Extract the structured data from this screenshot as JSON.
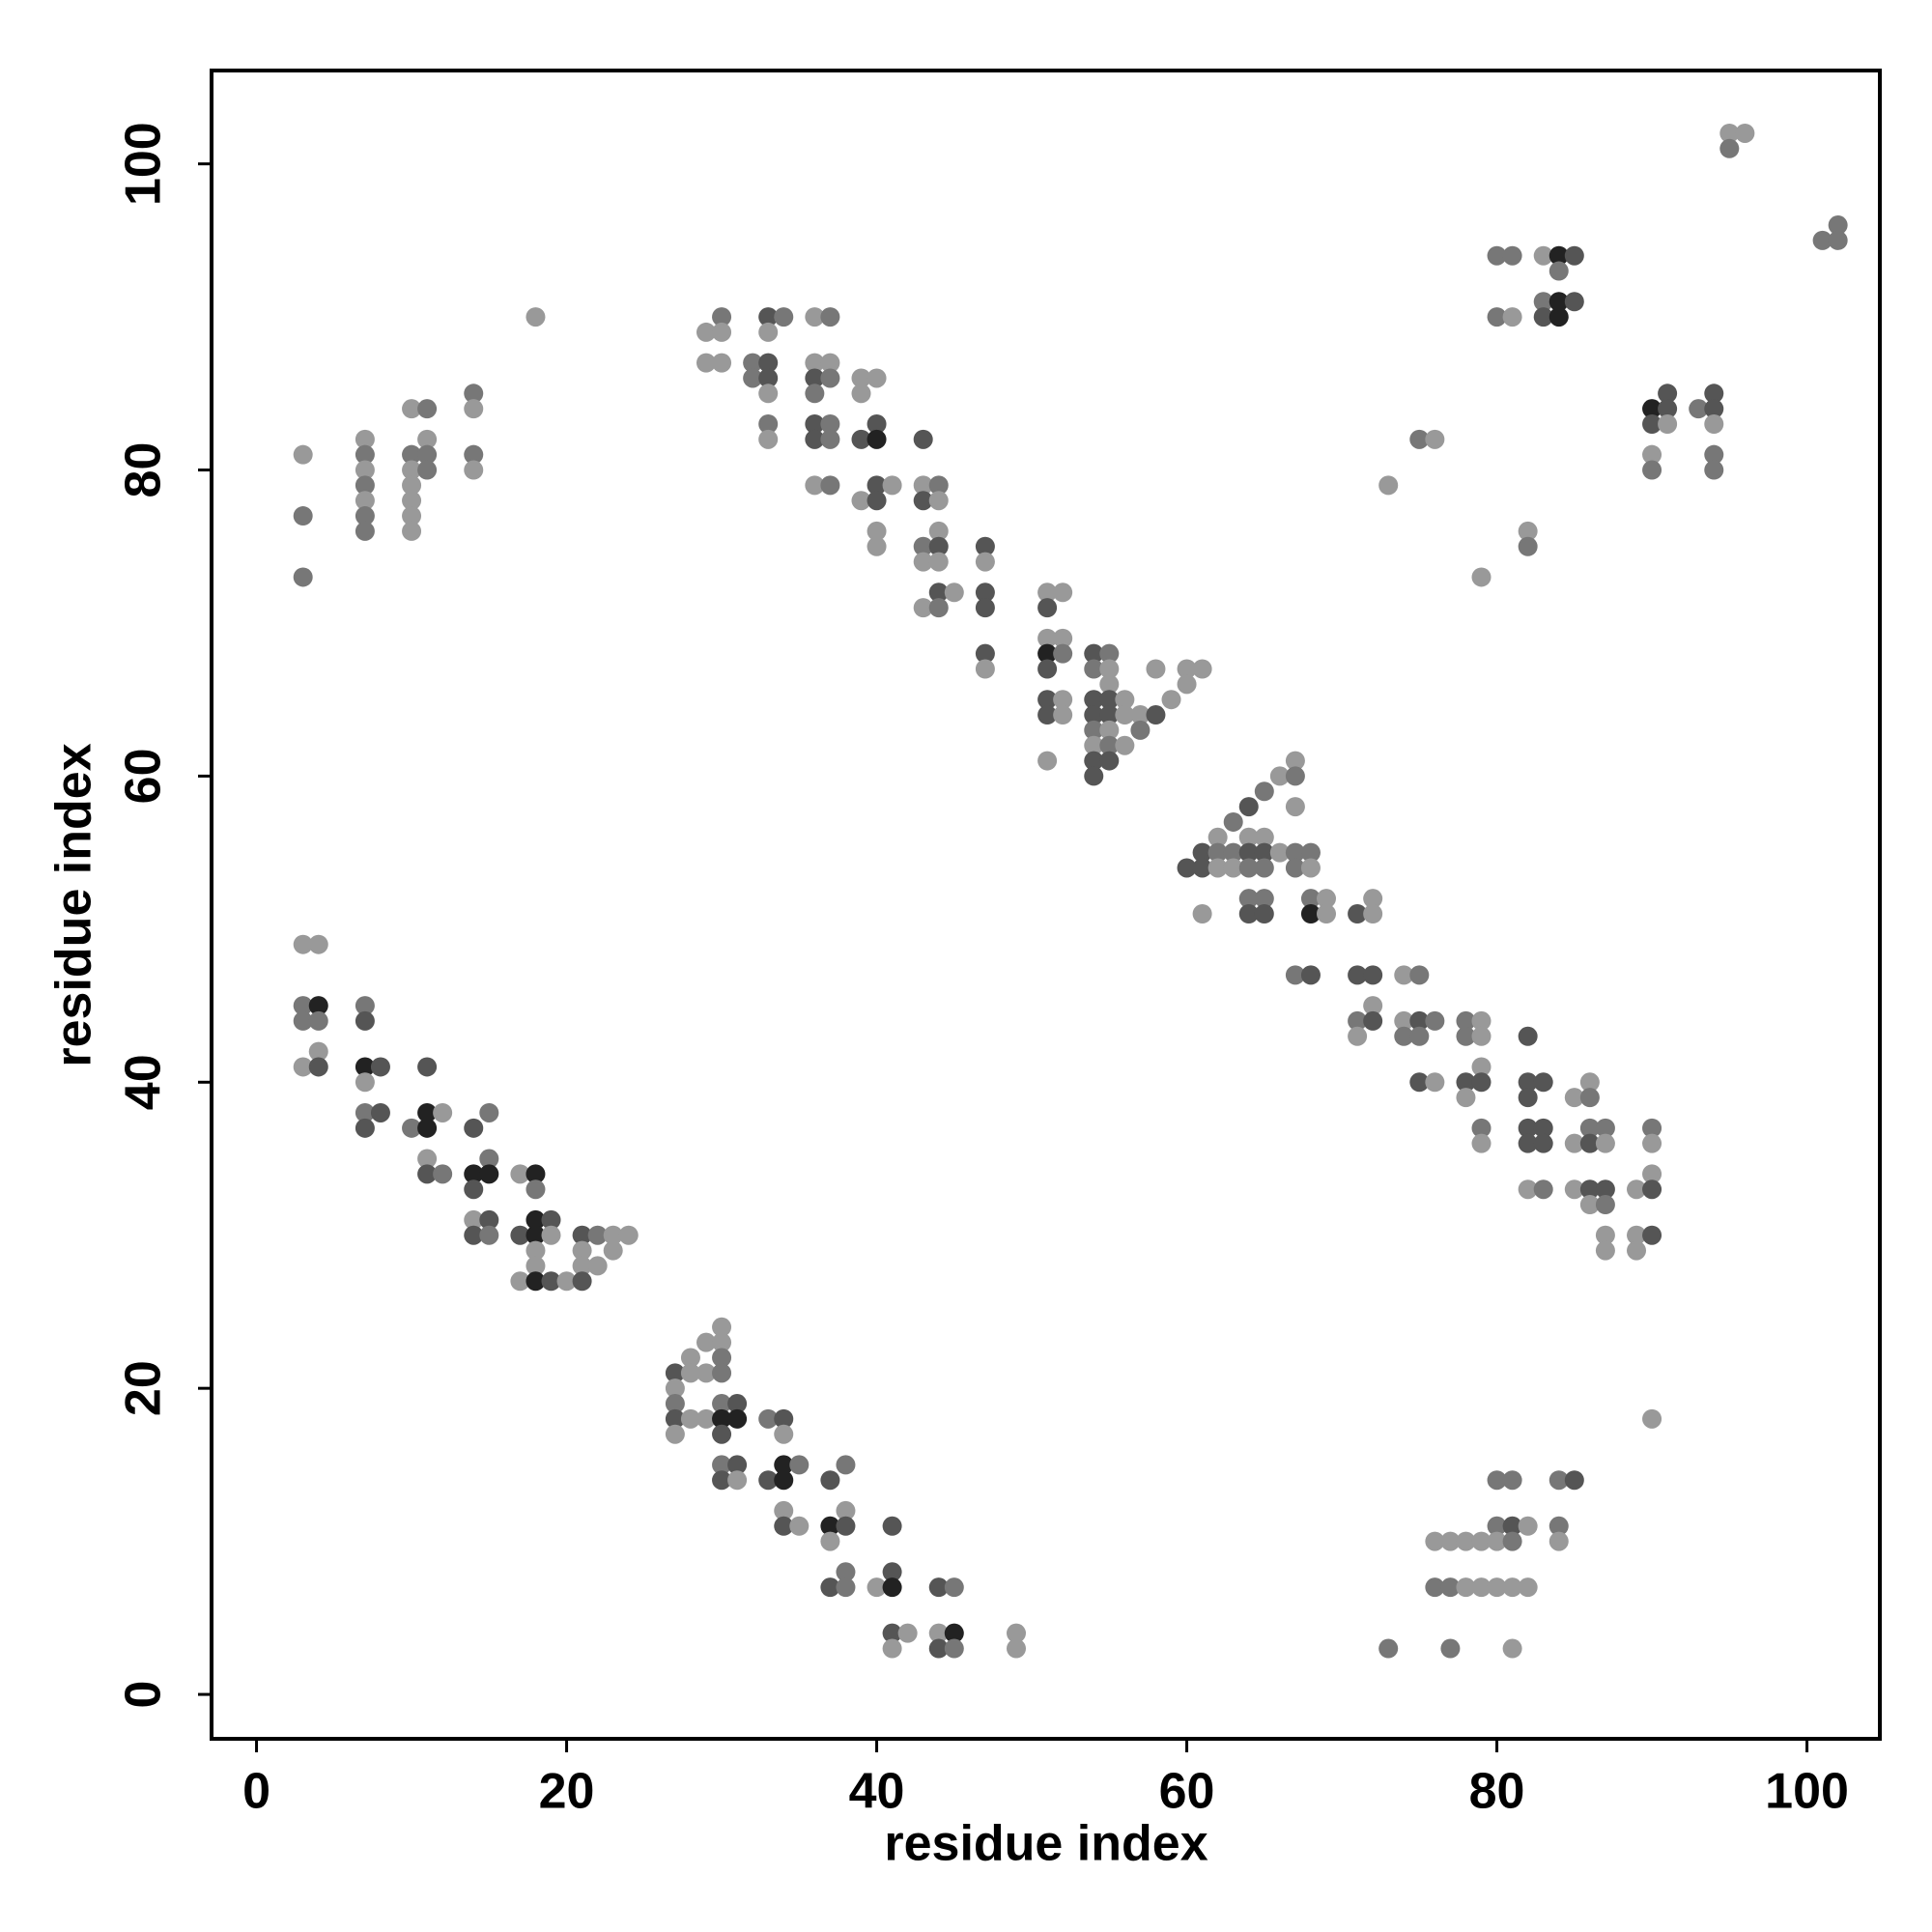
{
  "chart_data": {
    "type": "scatter",
    "xlabel": "residue index",
    "ylabel": "residue index",
    "xlim": [
      -2.9,
      104.7
    ],
    "ylim": [
      -2.9,
      106.1
    ],
    "xticks": [
      0,
      20,
      40,
      60,
      80,
      100
    ],
    "yticks": [
      0,
      20,
      40,
      60,
      80,
      100
    ],
    "x": [
      3,
      3,
      3,
      3,
      4,
      4,
      4,
      4,
      4,
      7,
      7,
      7,
      7,
      7,
      7,
      8,
      8,
      10,
      11,
      11,
      11,
      11,
      11,
      12,
      12,
      14,
      14,
      14,
      14,
      14,
      15,
      15,
      15,
      15,
      15,
      17,
      17,
      17,
      18,
      18,
      18,
      18,
      18,
      18,
      18,
      19,
      19,
      19,
      20,
      21,
      21,
      21,
      21,
      22,
      22,
      23,
      23,
      24,
      27,
      27,
      27,
      27,
      27,
      28,
      28,
      28,
      29,
      29,
      29,
      30,
      30,
      30,
      30,
      30,
      30,
      30,
      30,
      30,
      31,
      31,
      31,
      31,
      33,
      33,
      34,
      34,
      34,
      34,
      34,
      34,
      35,
      35,
      37,
      37,
      37,
      37,
      38,
      38,
      38,
      38,
      38,
      40,
      41,
      41,
      41,
      41,
      41,
      42,
      44,
      44,
      44,
      45,
      45,
      45,
      49,
      49,
      73,
      76,
      76,
      77,
      77,
      77,
      78,
      78,
      79,
      79,
      80,
      80,
      80,
      80,
      81,
      81,
      81,
      81,
      81,
      82,
      82,
      84,
      84,
      84,
      85,
      90,
      67,
      68,
      68,
      68,
      69,
      69,
      71,
      71,
      71,
      71,
      72,
      72,
      72,
      72,
      72,
      74,
      74,
      74,
      75,
      75,
      75,
      75,
      76,
      76,
      78,
      78,
      78,
      78,
      79,
      79,
      79,
      79,
      79,
      79,
      82,
      82,
      82,
      82,
      82,
      82,
      83,
      83,
      83,
      83,
      85,
      85,
      85,
      86,
      86,
      86,
      86,
      86,
      86,
      87,
      87,
      87,
      87,
      87,
      87,
      89,
      89,
      89,
      90,
      90,
      90,
      90,
      90,
      60,
      61,
      61,
      61,
      62,
      62,
      62,
      63,
      63,
      63,
      64,
      64,
      64,
      64,
      64,
      64,
      65,
      65,
      65,
      65,
      65,
      65,
      66,
      66,
      67,
      67,
      67,
      67,
      67,
      68,
      68,
      47,
      47,
      47,
      47,
      47,
      47,
      51,
      51,
      51,
      51,
      51,
      51,
      51,
      51,
      52,
      52,
      52,
      52,
      52,
      54,
      54,
      54,
      54,
      54,
      54,
      54,
      54,
      55,
      55,
      55,
      55,
      55,
      55,
      55,
      55,
      56,
      56,
      56,
      57,
      57,
      58,
      58,
      59,
      60,
      60,
      61,
      29,
      29,
      30,
      30,
      30,
      32,
      32,
      33,
      33,
      33,
      33,
      33,
      33,
      33,
      34,
      36,
      36,
      36,
      36,
      36,
      36,
      36,
      37,
      37,
      37,
      37,
      37,
      37,
      39,
      39,
      39,
      39,
      40,
      40,
      40,
      40,
      40,
      40,
      40,
      41,
      43,
      43,
      43,
      43,
      43,
      43,
      44,
      44,
      44,
      44,
      44,
      44,
      44,
      45,
      3,
      3,
      3,
      7,
      7,
      7,
      7,
      7,
      7,
      7,
      10,
      10,
      10,
      10,
      10,
      10,
      10,
      11,
      11,
      11,
      11,
      14,
      14,
      14,
      14,
      18,
      73,
      75,
      76,
      79,
      80,
      80,
      81,
      81,
      82,
      82,
      83,
      83,
      83,
      84,
      84,
      84,
      84,
      85,
      85,
      90,
      90,
      90,
      90,
      91,
      91,
      91,
      93,
      94,
      94,
      94,
      94,
      94,
      95,
      95,
      96,
      101,
      102,
      102
    ],
    "values": [
      49,
      45,
      44,
      41,
      49,
      45,
      44,
      42,
      41,
      45,
      44,
      41,
      40,
      38,
      37,
      41,
      38,
      37,
      41,
      38,
      37,
      35,
      34,
      38,
      34,
      37,
      34,
      33,
      31,
      30,
      38,
      35,
      34,
      31,
      30,
      34,
      30,
      27,
      34,
      33,
      31,
      30,
      29,
      28,
      27,
      31,
      30,
      27,
      27,
      30,
      29,
      28,
      27,
      30,
      28,
      30,
      29,
      30,
      21,
      20,
      19,
      18,
      17,
      22,
      21,
      18,
      23,
      21,
      18,
      24,
      23,
      22,
      21,
      19,
      18,
      17,
      15,
      14,
      19,
      18,
      15,
      14,
      18,
      14,
      18,
      17,
      15,
      14,
      12,
      11,
      15,
      11,
      14,
      11,
      10,
      7,
      15,
      12,
      11,
      8,
      7,
      7,
      11,
      8,
      7,
      4,
      3,
      4,
      7,
      4,
      3,
      7,
      4,
      3,
      4,
      3,
      3,
      10,
      7,
      10,
      7,
      3,
      10,
      7,
      10,
      7,
      14,
      11,
      10,
      7,
      14,
      11,
      10,
      7,
      3,
      11,
      7,
      14,
      11,
      10,
      14,
      18,
      47,
      52,
      51,
      47,
      52,
      51,
      51,
      47,
      44,
      43,
      52,
      51,
      47,
      45,
      44,
      47,
      44,
      43,
      47,
      44,
      43,
      40,
      44,
      40,
      44,
      43,
      40,
      39,
      44,
      43,
      41,
      40,
      37,
      36,
      43,
      40,
      39,
      37,
      36,
      33,
      40,
      37,
      36,
      33,
      39,
      36,
      33,
      40,
      39,
      37,
      36,
      33,
      32,
      37,
      36,
      33,
      32,
      30,
      29,
      33,
      30,
      29,
      37,
      36,
      34,
      33,
      30,
      54,
      55,
      54,
      51,
      56,
      55,
      54,
      57,
      55,
      54,
      58,
      56,
      55,
      54,
      52,
      51,
      59,
      56,
      55,
      54,
      52,
      51,
      60,
      55,
      61,
      60,
      58,
      55,
      54,
      55,
      54,
      75,
      74,
      72,
      71,
      68,
      67,
      72,
      71,
      69,
      68,
      67,
      65,
      64,
      61,
      72,
      69,
      68,
      65,
      64,
      68,
      67,
      65,
      64,
      63,
      62,
      61,
      60,
      68,
      67,
      66,
      65,
      64,
      63,
      62,
      61,
      65,
      64,
      62,
      64,
      63,
      67,
      64,
      65,
      67,
      66,
      67,
      89,
      87,
      90,
      89,
      87,
      87,
      86,
      90,
      89,
      87,
      86,
      85,
      83,
      82,
      90,
      90,
      87,
      86,
      85,
      83,
      82,
      79,
      90,
      87,
      86,
      83,
      82,
      79,
      86,
      85,
      82,
      78,
      86,
      83,
      82,
      79,
      78,
      76,
      75,
      79,
      82,
      79,
      78,
      75,
      74,
      71,
      79,
      78,
      76,
      75,
      74,
      72,
      71,
      72,
      81,
      77,
      73,
      82,
      81,
      80,
      79,
      78,
      77,
      76,
      84,
      81,
      80,
      79,
      78,
      77,
      76,
      84,
      82,
      81,
      80,
      85,
      84,
      81,
      80,
      90,
      79,
      82,
      82,
      73,
      94,
      90,
      94,
      90,
      76,
      75,
      94,
      91,
      90,
      94,
      93,
      91,
      90,
      94,
      91,
      84,
      83,
      81,
      80,
      85,
      84,
      83,
      84,
      85,
      84,
      83,
      81,
      80,
      102,
      101,
      102,
      95,
      96,
      95
    ],
    "colors": [
      "#999",
      "#777",
      "#777",
      "#999",
      "#999",
      "#222",
      "#777",
      "#999",
      "#555",
      "#777",
      "#555",
      "#222",
      "#999",
      "#777",
      "#555",
      "#555",
      "#555",
      "#777",
      "#555",
      "#222",
      "#222",
      "#999",
      "#555",
      "#999",
      "#777",
      "#555",
      "#222",
      "#555",
      "#999",
      "#555",
      "#777",
      "#777",
      "#222",
      "#555",
      "#777",
      "#999",
      "#555",
      "#999",
      "#222",
      "#777",
      "#222",
      "#222",
      "#999",
      "#999",
      "#222",
      "#555",
      "#999",
      "#555",
      "#999",
      "#555",
      "#999",
      "#999",
      "#555",
      "#777",
      "#999",
      "#999",
      "#999",
      "#999",
      "#555",
      "#999",
      "#777",
      "#555",
      "#999",
      "#999",
      "#999",
      "#999",
      "#999",
      "#999",
      "#999",
      "#999",
      "#999",
      "#777",
      "#777",
      "#777",
      "#222",
      "#555",
      "#777",
      "#555",
      "#555",
      "#222",
      "#555",
      "#999",
      "#777",
      "#555",
      "#555",
      "#999",
      "#222",
      "#222",
      "#999",
      "#555",
      "#777",
      "#999",
      "#555",
      "#222",
      "#999",
      "#555",
      "#777",
      "#999",
      "#555",
      "#777",
      "#777",
      "#999",
      "#555",
      "#555",
      "#222",
      "#555",
      "#999",
      "#999",
      "#555",
      "#999",
      "#555",
      "#777",
      "#222",
      "#777",
      "#999",
      "#999",
      "#777",
      "#999",
      "#777",
      "#999",
      "#777",
      "#777",
      "#999",
      "#999",
      "#999",
      "#999",
      "#777",
      "#777",
      "#999",
      "#999",
      "#777",
      "#555",
      "#777",
      "#999",
      "#999",
      "#999",
      "#999",
      "#777",
      "#777",
      "#999",
      "#555",
      "#999",
      "#777",
      "#777",
      "#222",
      "#555",
      "#999",
      "#999",
      "#555",
      "#555",
      "#777",
      "#999",
      "#999",
      "#999",
      "#555",
      "#999",
      "#555",
      "#999",
      "#999",
      "#777",
      "#777",
      "#555",
      "#777",
      "#555",
      "#777",
      "#999",
      "#777",
      "#777",
      "#555",
      "#999",
      "#999",
      "#999",
      "#999",
      "#555",
      "#777",
      "#999",
      "#555",
      "#555",
      "#555",
      "#555",
      "#555",
      "#999",
      "#555",
      "#555",
      "#555",
      "#777",
      "#999",
      "#999",
      "#999",
      "#999",
      "#777",
      "#777",
      "#555",
      "#555",
      "#999",
      "#777",
      "#999",
      "#555",
      "#777",
      "#999",
      "#999",
      "#999",
      "#999",
      "#999",
      "#777",
      "#999",
      "#999",
      "#555",
      "#555",
      "#555",
      "#555",
      "#555",
      "#999",
      "#999",
      "#777",
      "#999",
      "#777",
      "#777",
      "#999",
      "#555",
      "#999",
      "#555",
      "#777",
      "#777",
      "#555",
      "#777",
      "#999",
      "#555",
      "#777",
      "#777",
      "#555",
      "#999",
      "#999",
      "#999",
      "#777",
      "#999",
      "#777",
      "#777",
      "#777",
      "#999",
      "#555",
      "#999",
      "#555",
      "#555",
      "#555",
      "#999",
      "#999",
      "#555",
      "#999",
      "#222",
      "#555",
      "#555",
      "#555",
      "#999",
      "#999",
      "#999",
      "#777",
      "#999",
      "#999",
      "#555",
      "#777",
      "#555",
      "#555",
      "#777",
      "#999",
      "#555",
      "#555",
      "#777",
      "#999",
      "#999",
      "#555",
      "#555",
      "#999",
      "#777",
      "#555",
      "#999",
      "#999",
      "#999",
      "#999",
      "#777",
      "#999",
      "#555",
      "#999",
      "#999",
      "#999",
      "#999",
      "#999",
      "#999",
      "#777",
      "#999",
      "#999",
      "#777",
      "#777",
      "#555",
      "#999",
      "#555",
      "#555",
      "#999",
      "#777",
      "#999",
      "#777",
      "#999",
      "#999",
      "#555",
      "#777",
      "#555",
      "#555",
      "#999",
      "#777",
      "#999",
      "#777",
      "#777",
      "#777",
      "#777",
      "#999",
      "#999",
      "#555",
      "#999",
      "#999",
      "#555",
      "#222",
      "#555",
      "#555",
      "#999",
      "#999",
      "#999",
      "#555",
      "#999",
      "#555",
      "#777",
      "#999",
      "#999",
      "#777",
      "#999",
      "#999",
      "#555",
      "#999",
      "#555",
      "#777",
      "#999",
      "#999",
      "#777",
      "#777",
      "#999",
      "#777",
      "#999",
      "#777",
      "#999",
      "#777",
      "#777",
      "#999",
      "#777",
      "#999",
      "#999",
      "#999",
      "#999",
      "#999",
      "#777",
      "#999",
      "#777",
      "#777",
      "#777",
      "#999",
      "#777",
      "#999",
      "#999",
      "#999",
      "#777",
      "#999",
      "#999",
      "#777",
      "#777",
      "#777",
      "#999",
      "#999",
      "#777",
      "#999",
      "#777",
      "#555",
      "#222",
      "#777",
      "#222",
      "#222",
      "#555",
      "#555",
      "#222",
      "#555",
      "#999",
      "#777",
      "#555",
      "#555",
      "#999",
      "#777",
      "#555",
      "#555",
      "#999",
      "#777",
      "#777",
      "#999",
      "#777",
      "#999",
      "#777",
      "#777",
      "#777"
    ]
  }
}
